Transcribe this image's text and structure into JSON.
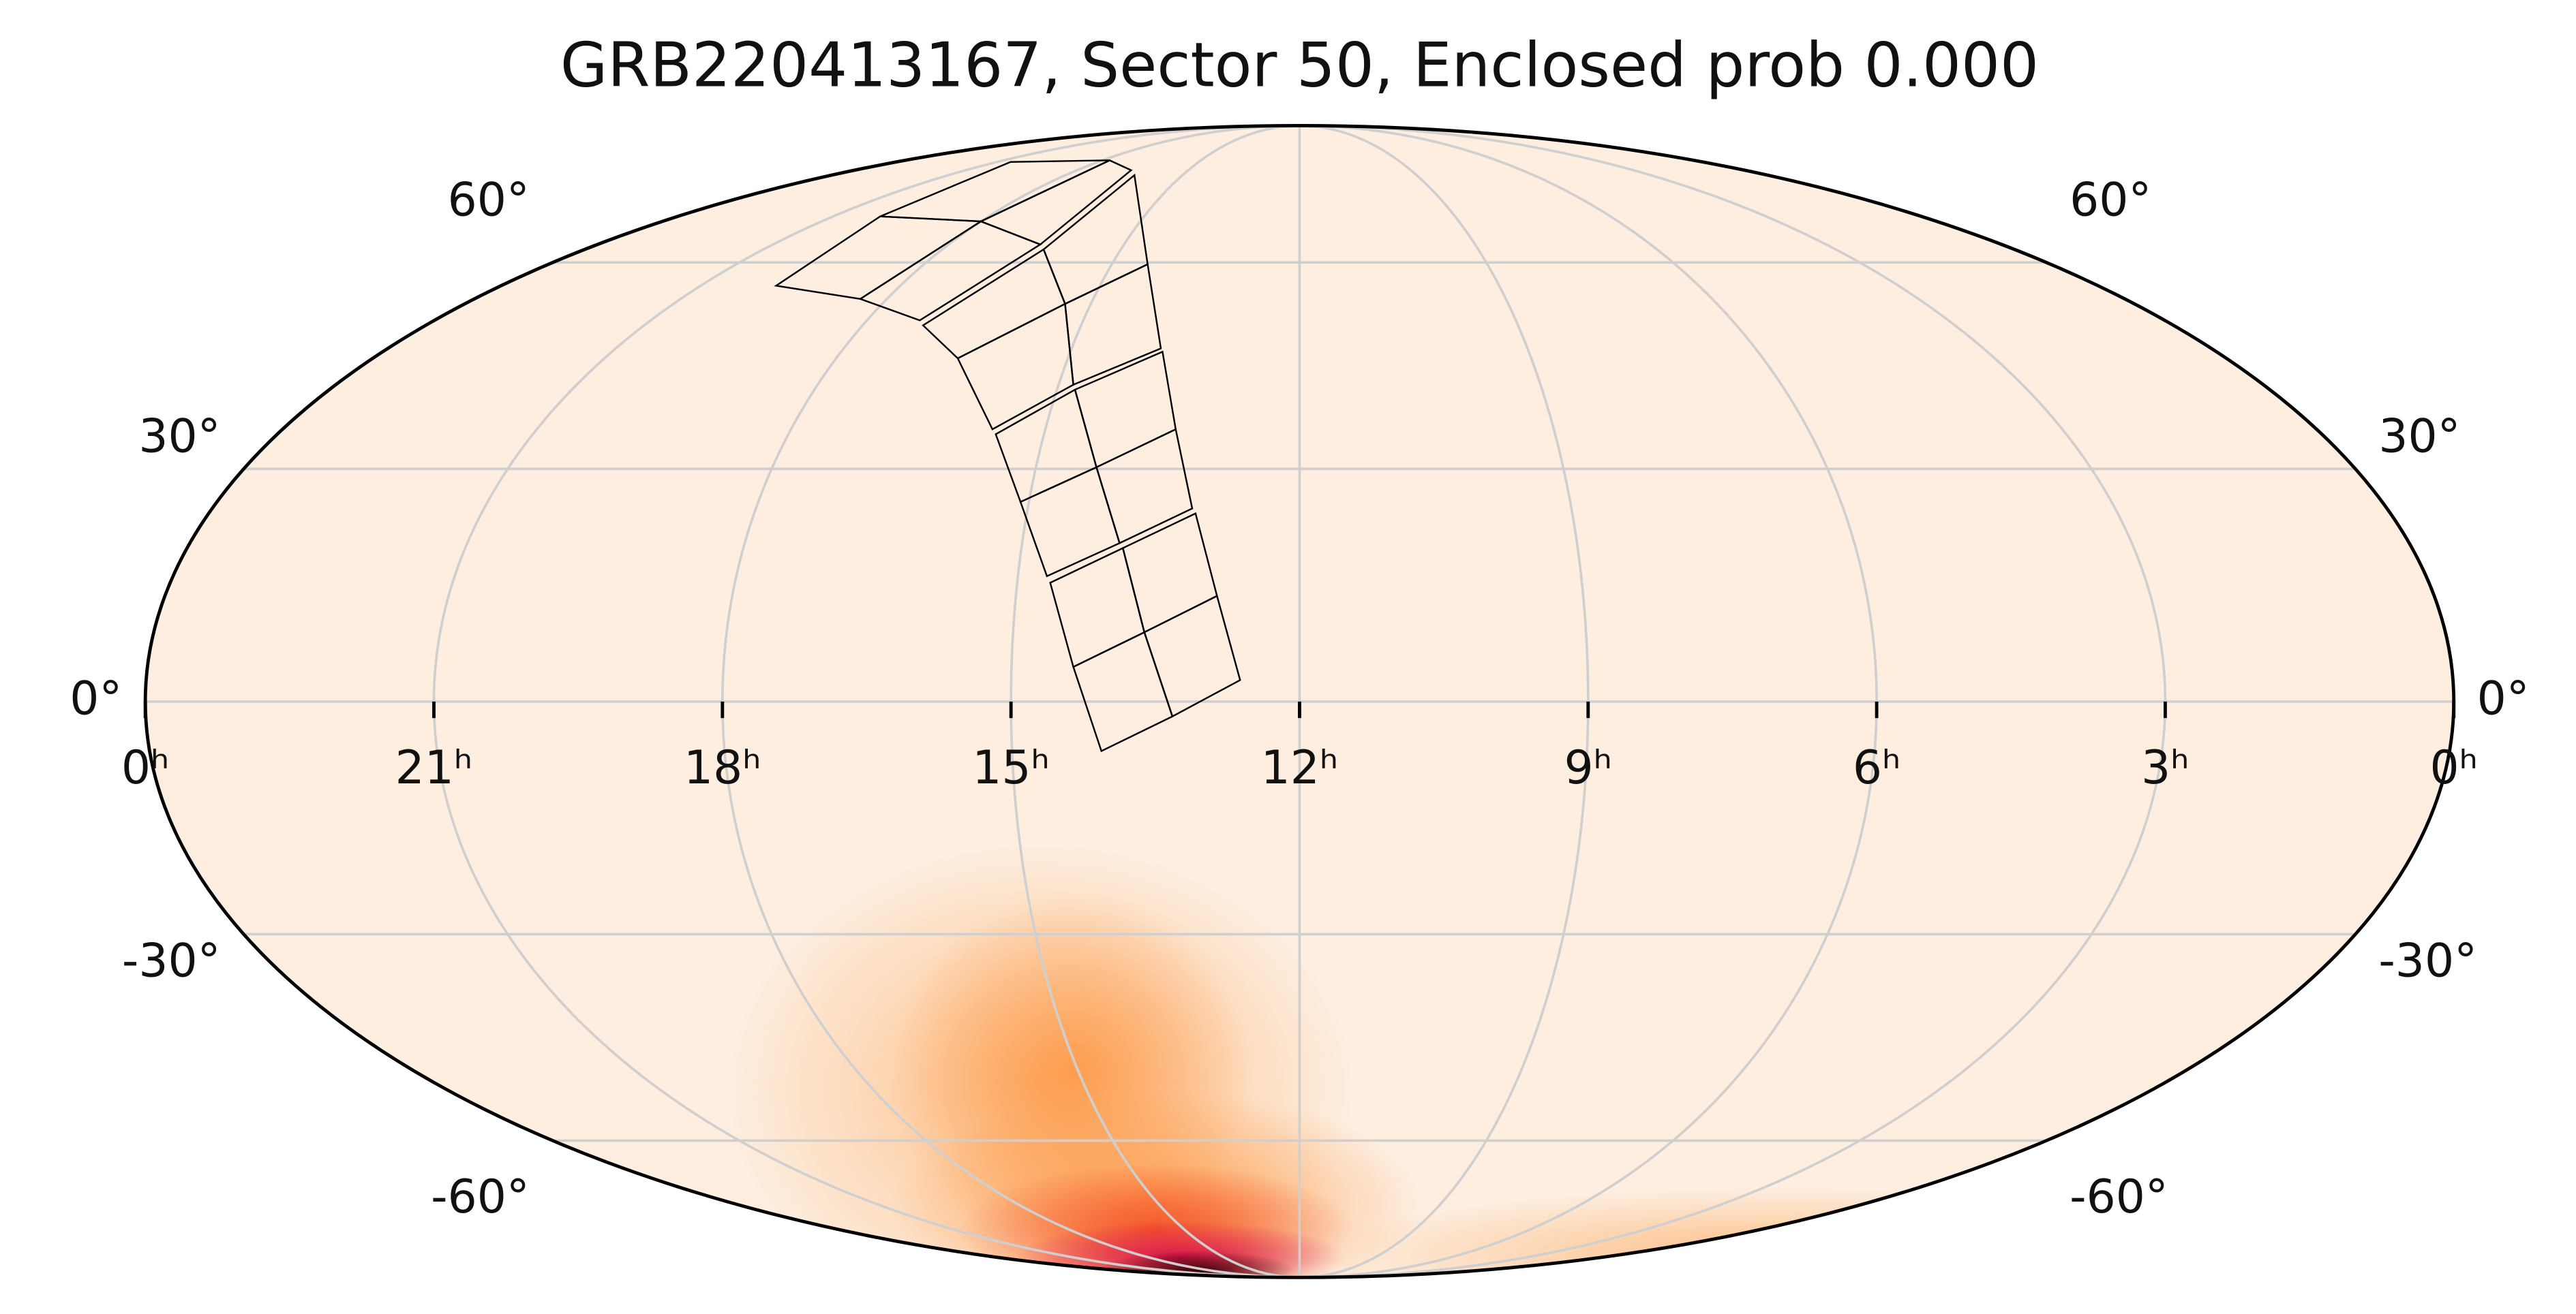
{
  "chart_data": {
    "type": "mollweide",
    "title": "GRB220413167, Sector 50, Enclosed prob 0.000",
    "xlim": [
      24,
      0
    ],
    "xticks": [
      {
        "value": 24,
        "label": "0ʰ"
      },
      {
        "value": 21,
        "label": "21ʰ"
      },
      {
        "value": 18,
        "label": "18ʰ"
      },
      {
        "value": 15,
        "label": "15ʰ"
      },
      {
        "value": 12,
        "label": "12ʰ"
      },
      {
        "value": 9,
        "label": "9ʰ"
      },
      {
        "value": 6,
        "label": "6ʰ"
      },
      {
        "value": 3,
        "label": "3ʰ"
      },
      {
        "value": 0,
        "label": "0ʰ"
      }
    ],
    "ylim": [
      -90,
      90
    ],
    "yticks": [
      {
        "value": -60,
        "label": "-60°"
      },
      {
        "value": -30,
        "label": "-30°"
      },
      {
        "value": 0,
        "label": "0°"
      },
      {
        "value": 30,
        "label": "30°"
      },
      {
        "value": 60,
        "label": "60°"
      }
    ],
    "grid": true
  }
}
